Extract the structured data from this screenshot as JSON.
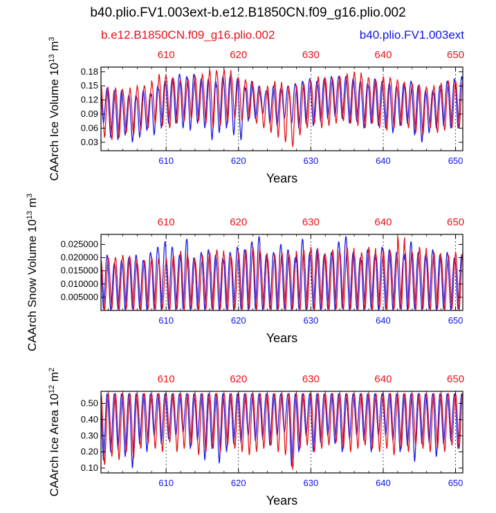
{
  "title": "b40.plio.FV1.003ext-b.e12.B1850CN.f09_g16.plio.002",
  "legend": {
    "left_label": "b.e12.B1850CN.f09_g16.plio.002",
    "right_label": "b40.plio.FV1.003ext"
  },
  "colors": {
    "series_a": "#1a1ae6",
    "series_b": "#e6141a",
    "axis": "#000000",
    "grid": "#000000"
  },
  "chart_data": [
    {
      "type": "line",
      "title": "",
      "ylabel_main": "CAArch Ice Volume 10",
      "ylabel_exp": "13",
      "ylabel_unit": " m",
      "ylabel_unit_exp": "3",
      "xlabel": "Years",
      "xlim": [
        601,
        651
      ],
      "ylim": [
        0.012,
        0.19
      ],
      "yticks": [
        0.03,
        0.06,
        0.09,
        0.12,
        0.15,
        0.18
      ],
      "ytick_labels": [
        "0.03",
        "0.06",
        "0.09",
        "0.12",
        "0.15",
        "0.18"
      ],
      "xticks": [
        610,
        620,
        630,
        640,
        650
      ],
      "xtick_labels_bottom": [
        "610",
        "620",
        "630",
        "640",
        "650"
      ],
      "xtick_labels_top": [
        "610",
        "620",
        "630",
        "640",
        "650"
      ],
      "series": [
        {
          "name": "b40.plio.FV1.003ext",
          "color": "#1a1ae6",
          "peaks": [
            0.145,
            0.14,
            0.14,
            0.13,
            0.13,
            0.14,
            0.135,
            0.15,
            0.16,
            0.165,
            0.175,
            0.17,
            0.175,
            0.165,
            0.165,
            0.16,
            0.17,
            0.17,
            0.165,
            0.15,
            0.16,
            0.15,
            0.14,
            0.15,
            0.145,
            0.15,
            0.155,
            0.16,
            0.165,
            0.16,
            0.165,
            0.17,
            0.17,
            0.17,
            0.165,
            0.16,
            0.155,
            0.165,
            0.16,
            0.155,
            0.15,
            0.155,
            0.16,
            0.15,
            0.14,
            0.14,
            0.15,
            0.16,
            0.165,
            0.17
          ],
          "troughs": [
            0.07,
            0.04,
            0.035,
            0.045,
            0.03,
            0.04,
            0.055,
            0.045,
            0.06,
            0.07,
            0.07,
            0.06,
            0.055,
            0.07,
            0.06,
            0.035,
            0.05,
            0.06,
            0.045,
            0.035,
            0.075,
            0.08,
            0.09,
            0.07,
            0.065,
            0.08,
            0.07,
            0.06,
            0.07,
            0.065,
            0.075,
            0.08,
            0.085,
            0.08,
            0.07,
            0.075,
            0.06,
            0.07,
            0.065,
            0.06,
            0.05,
            0.065,
            0.07,
            0.045,
            0.03,
            0.05,
            0.06,
            0.065,
            0.06,
            0.06
          ]
        },
        {
          "name": "b.e12.B1850CN.f09_g16.plio.002",
          "color": "#e6141a",
          "peaks": [
            0.15,
            0.14,
            0.145,
            0.14,
            0.145,
            0.15,
            0.15,
            0.16,
            0.175,
            0.17,
            0.165,
            0.16,
            0.165,
            0.17,
            0.175,
            0.185,
            0.18,
            0.185,
            0.17,
            0.165,
            0.16,
            0.15,
            0.14,
            0.15,
            0.16,
            0.15,
            0.14,
            0.15,
            0.155,
            0.16,
            0.17,
            0.165,
            0.165,
            0.17,
            0.175,
            0.18,
            0.17,
            0.165,
            0.16,
            0.17,
            0.165,
            0.16,
            0.15,
            0.155,
            0.15,
            0.145,
            0.15,
            0.155,
            0.16,
            0.16
          ],
          "troughs": [
            0.04,
            0.035,
            0.04,
            0.05,
            0.045,
            0.055,
            0.06,
            0.07,
            0.065,
            0.06,
            0.07,
            0.075,
            0.08,
            0.075,
            0.07,
            0.06,
            0.065,
            0.07,
            0.08,
            0.075,
            0.08,
            0.07,
            0.06,
            0.05,
            0.04,
            0.03,
            0.02,
            0.045,
            0.06,
            0.07,
            0.06,
            0.065,
            0.07,
            0.075,
            0.07,
            0.065,
            0.06,
            0.07,
            0.06,
            0.055,
            0.06,
            0.065,
            0.06,
            0.05,
            0.045,
            0.06,
            0.05,
            0.055,
            0.06,
            0.06
          ]
        }
      ]
    },
    {
      "type": "line",
      "title": "",
      "ylabel_main": "CAArch Snow Volume 10",
      "ylabel_exp": "13",
      "ylabel_unit": " m",
      "ylabel_unit_exp": "3",
      "xlabel": "Years",
      "xlim": [
        601,
        651
      ],
      "ylim": [
        0.0,
        0.0288
      ],
      "yticks": [
        0.005,
        0.01,
        0.015,
        0.02,
        0.025
      ],
      "ytick_labels": [
        "0.005000",
        "0.010000",
        "0.015000",
        "0.020000",
        "0.025000"
      ],
      "xticks": [
        610,
        620,
        630,
        640,
        650
      ],
      "xtick_labels_bottom": [
        "610",
        "620",
        "630",
        "640",
        "650"
      ],
      "xtick_labels_top": [
        "610",
        "620",
        "630",
        "640",
        "650"
      ],
      "series": [
        {
          "name": "b40.plio.FV1.003ext",
          "color": "#1a1ae6",
          "peaks": [
            0.021,
            0.018,
            0.019,
            0.02,
            0.021,
            0.019,
            0.022,
            0.024,
            0.026,
            0.024,
            0.021,
            0.027,
            0.02,
            0.022,
            0.023,
            0.021,
            0.02,
            0.022,
            0.024,
            0.023,
            0.026,
            0.028,
            0.021,
            0.022,
            0.025,
            0.023,
            0.02,
            0.027,
            0.022,
            0.023,
            0.021,
            0.022,
            0.026,
            0.028,
            0.022,
            0.02,
            0.023,
            0.021,
            0.024,
            0.023,
            0.022,
            0.021,
            0.026,
            0.022,
            0.021,
            0.023,
            0.021,
            0.022,
            0.02,
            0.021
          ],
          "troughs": [
            0.0005,
            0.0,
            0.0005,
            0.0,
            0.0005,
            0.0005,
            0.0,
            0.0005,
            0.0,
            0.0005,
            0.0,
            0.0005,
            0.0,
            0.0005,
            0.0,
            0.0005,
            0.0,
            0.0005,
            0.0,
            0.0005,
            0.0,
            0.0005,
            0.0,
            0.0005,
            0.0,
            0.0005,
            0.0,
            0.0005,
            0.0,
            0.0005,
            0.0,
            0.0005,
            0.0,
            0.0005,
            0.0,
            0.0005,
            0.0,
            0.0005,
            0.0,
            0.0005,
            0.0,
            0.0005,
            0.0,
            0.0005,
            0.0,
            0.0005,
            0.0,
            0.0005,
            0.0,
            0.0005
          ]
        },
        {
          "name": "b.e12.B1850CN.f09_g16.plio.002",
          "color": "#e6141a",
          "peaks": [
            0.019,
            0.02,
            0.02,
            0.021,
            0.02,
            0.018,
            0.019,
            0.02,
            0.018,
            0.02,
            0.021,
            0.022,
            0.02,
            0.019,
            0.021,
            0.022,
            0.023,
            0.021,
            0.02,
            0.022,
            0.023,
            0.024,
            0.022,
            0.02,
            0.021,
            0.022,
            0.021,
            0.022,
            0.023,
            0.024,
            0.022,
            0.021,
            0.023,
            0.022,
            0.024,
            0.021,
            0.022,
            0.024,
            0.021,
            0.023,
            0.022,
            0.028,
            0.023,
            0.022,
            0.024,
            0.021,
            0.022,
            0.02,
            0.021,
            0.022
          ],
          "troughs": [
            0.0,
            0.0005,
            0.0,
            0.0005,
            0.0,
            0.0,
            0.0005,
            0.0,
            0.0005,
            0.0,
            0.0005,
            0.0,
            0.0005,
            0.0,
            0.0005,
            0.0,
            0.0005,
            0.0,
            0.0005,
            0.0,
            0.0005,
            0.0,
            0.0005,
            0.0,
            0.0005,
            0.0,
            0.0005,
            0.0,
            0.0005,
            0.0,
            0.0005,
            0.0,
            0.0005,
            0.0,
            0.0005,
            0.0,
            0.0005,
            0.0,
            0.0005,
            0.0,
            0.0005,
            0.0,
            0.0005,
            0.0,
            0.0005,
            0.0,
            0.0005,
            0.0,
            0.0005,
            0.0
          ]
        }
      ]
    },
    {
      "type": "line",
      "title": "",
      "ylabel_main": "CAArch Ice Area 10",
      "ylabel_exp": "12",
      "ylabel_unit": " m",
      "ylabel_unit_exp": "2",
      "xlabel": "Years",
      "xlim": [
        601,
        651
      ],
      "ylim": [
        0.07,
        0.575
      ],
      "yticks": [
        0.1,
        0.2,
        0.3,
        0.4,
        0.5
      ],
      "ytick_labels": [
        "0.10",
        "0.20",
        "0.30",
        "0.40",
        "0.50"
      ],
      "xticks": [
        610,
        620,
        630,
        640,
        650
      ],
      "xtick_labels_bottom": [
        "610",
        "620",
        "630",
        "640",
        "650"
      ],
      "xtick_labels_top": [
        "610",
        "620",
        "630",
        "640",
        "650"
      ],
      "series": [
        {
          "name": "b40.plio.FV1.003ext",
          "color": "#1a1ae6",
          "peaks": [
            0.56,
            0.56,
            0.56,
            0.56,
            0.56,
            0.56,
            0.56,
            0.56,
            0.56,
            0.56,
            0.56,
            0.56,
            0.56,
            0.56,
            0.56,
            0.56,
            0.56,
            0.56,
            0.56,
            0.56,
            0.56,
            0.56,
            0.56,
            0.56,
            0.56,
            0.56,
            0.56,
            0.56,
            0.56,
            0.56,
            0.56,
            0.56,
            0.56,
            0.56,
            0.56,
            0.56,
            0.56,
            0.56,
            0.56,
            0.56,
            0.56,
            0.56,
            0.56,
            0.56,
            0.56,
            0.56,
            0.56,
            0.56,
            0.56,
            0.56
          ],
          "troughs": [
            0.15,
            0.2,
            0.22,
            0.17,
            0.1,
            0.25,
            0.2,
            0.3,
            0.25,
            0.28,
            0.3,
            0.32,
            0.22,
            0.27,
            0.15,
            0.22,
            0.13,
            0.2,
            0.25,
            0.26,
            0.3,
            0.27,
            0.28,
            0.24,
            0.3,
            0.32,
            0.11,
            0.2,
            0.3,
            0.2,
            0.26,
            0.3,
            0.25,
            0.2,
            0.28,
            0.3,
            0.27,
            0.2,
            0.3,
            0.3,
            0.27,
            0.2,
            0.24,
            0.14,
            0.25,
            0.26,
            0.17,
            0.25,
            0.27,
            0.22
          ]
        },
        {
          "name": "b.e12.B1850CN.f09_g16.plio.002",
          "color": "#e6141a",
          "peaks": [
            0.56,
            0.56,
            0.56,
            0.56,
            0.56,
            0.56,
            0.56,
            0.56,
            0.56,
            0.56,
            0.56,
            0.56,
            0.56,
            0.56,
            0.56,
            0.56,
            0.56,
            0.56,
            0.56,
            0.56,
            0.56,
            0.56,
            0.56,
            0.56,
            0.56,
            0.56,
            0.56,
            0.56,
            0.56,
            0.56,
            0.56,
            0.56,
            0.56,
            0.56,
            0.56,
            0.56,
            0.56,
            0.56,
            0.56,
            0.56,
            0.56,
            0.56,
            0.56,
            0.56,
            0.56,
            0.56,
            0.56,
            0.56,
            0.56,
            0.56
          ],
          "troughs": [
            0.12,
            0.17,
            0.15,
            0.2,
            0.16,
            0.22,
            0.25,
            0.22,
            0.2,
            0.26,
            0.2,
            0.22,
            0.24,
            0.18,
            0.2,
            0.22,
            0.2,
            0.24,
            0.22,
            0.2,
            0.18,
            0.2,
            0.22,
            0.24,
            0.2,
            0.18,
            0.09,
            0.22,
            0.24,
            0.2,
            0.22,
            0.24,
            0.26,
            0.22,
            0.2,
            0.22,
            0.24,
            0.22,
            0.2,
            0.22,
            0.18,
            0.22,
            0.2,
            0.24,
            0.22,
            0.2,
            0.22,
            0.2,
            0.24,
            0.22
          ]
        }
      ]
    }
  ]
}
